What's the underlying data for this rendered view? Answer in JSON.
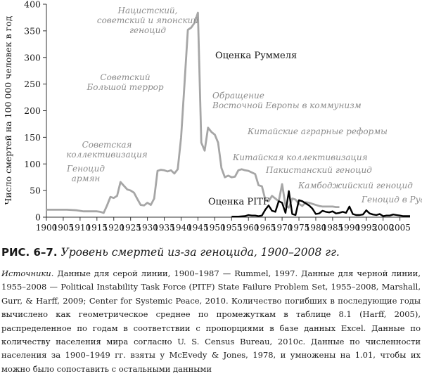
{
  "chart_data": {
    "type": "line",
    "ylabel": "Число смертей на 100 000 человек в год",
    "ylim": [
      0,
      400
    ],
    "yticks": [
      0,
      50,
      100,
      150,
      200,
      250,
      300,
      350,
      400
    ],
    "xlim": [
      1900,
      2008
    ],
    "xticks": [
      1900,
      1905,
      1910,
      1915,
      1920,
      1925,
      1930,
      1935,
      1940,
      1945,
      1950,
      1955,
      1960,
      1965,
      1970,
      1975,
      1980,
      1985,
      1990,
      1995,
      2000,
      2005
    ],
    "series": [
      {
        "name": "Оценка Руммеля",
        "color": "#a6a6a6",
        "x": [
          1900,
          1903,
          1906,
          1909,
          1911,
          1913,
          1915,
          1916,
          1917,
          1918,
          1919,
          1920,
          1921,
          1922,
          1924,
          1925,
          1926,
          1927,
          1928,
          1929,
          1930,
          1931,
          1932,
          1933,
          1934,
          1935,
          1936,
          1937,
          1938,
          1939,
          1940,
          1941,
          1942,
          1943,
          1944,
          1945,
          1946,
          1947,
          1948,
          1949,
          1950,
          1951,
          1952,
          1953,
          1954,
          1955,
          1956,
          1957,
          1958,
          1959,
          1960,
          1961,
          1962,
          1963,
          1964,
          1965,
          1966,
          1967,
          1968,
          1969,
          1970,
          1971,
          1972,
          1973,
          1974,
          1975,
          1976,
          1977,
          1978,
          1979,
          1980,
          1981,
          1982,
          1983,
          1984,
          1985,
          1986,
          1987
        ],
        "y": [
          14,
          14,
          14,
          13,
          11,
          11,
          11,
          10,
          8,
          22,
          38,
          36,
          40,
          66,
          52,
          50,
          46,
          34,
          23,
          22,
          27,
          23,
          35,
          87,
          89,
          88,
          86,
          88,
          82,
          90,
          150,
          250,
          352,
          356,
          365,
          384,
          140,
          125,
          168,
          160,
          155,
          140,
          92,
          75,
          78,
          75,
          76,
          88,
          90,
          88,
          87,
          84,
          81,
          60,
          58,
          33,
          30,
          40,
          35,
          30,
          62,
          22,
          18,
          35,
          33,
          25,
          21,
          28,
          27,
          25,
          23,
          21,
          20,
          20,
          20,
          20,
          19,
          19
        ]
      },
      {
        "name": "Оценка PITF",
        "color": "#000000",
        "x": [
          1955,
          1957,
          1959,
          1960,
          1961,
          1962,
          1963,
          1964,
          1965,
          1966,
          1967,
          1968,
          1969,
          1970,
          1971,
          1972,
          1973,
          1974,
          1975,
          1976,
          1977,
          1978,
          1979,
          1980,
          1981,
          1982,
          1983,
          1984,
          1985,
          1986,
          1987,
          1988,
          1989,
          1990,
          1991,
          1992,
          1993,
          1994,
          1995,
          1996,
          1997,
          1998,
          1999,
          2000,
          2001,
          2002,
          2003,
          2004,
          2005,
          2006,
          2007,
          2008
        ],
        "y": [
          1,
          1,
          2,
          4,
          3,
          3,
          2,
          3,
          14,
          22,
          12,
          10,
          30,
          27,
          8,
          49,
          6,
          4,
          32,
          30,
          26,
          22,
          16,
          6,
          7,
          12,
          10,
          9,
          11,
          7,
          8,
          10,
          8,
          20,
          6,
          4,
          4,
          5,
          13,
          7,
          5,
          4,
          6,
          2,
          3,
          3,
          5,
          4,
          3,
          2,
          2,
          2
        ]
      }
    ],
    "annotations": [
      "Нацистский,",
      "советский и японский",
      "геноцид",
      "Оценка Руммеля",
      "Советский",
      "Большой террор",
      "Обращение",
      "Восточной Европы в коммунизм",
      "Китайские аграрные реформы",
      "Советская",
      "коллективизация",
      "Китайская коллективизация",
      "Геноцид",
      "армян",
      "Пакистанский геноцид",
      "Камбоджийский геноцид",
      "Геноцид в Руанде",
      "Оценка PITF"
    ]
  },
  "figure": {
    "label": "РИС. 6–7.",
    "caption": "Уровень смертей из-за геноцида, 1900–2008 гг.",
    "sources_label": "Источники.",
    "sources_text": "Данные для серой линии, 1900–1987 — Rummel, 1997. Данные для черной линии, 1955–2008 — Political Instability Task Force (PITF) State Failure Problem Set, 1955–2008, Marshall, Gurr, & Harff, 2009; Center for Systemic Peace, 2010. Количество погибших в последующие годы вычислено как геометрическое среднее по промежуткам в таблице 8.1 (Harff, 2005), распределенное по годам в соответствии с пропорциями в базе данных Excel. Данные по количеству населения мира согласно U. S. Census Bureau, 2010c. Данные по численности населения за 1900–1949 гг. взяты у McEvedy & Jones, 1978, и умножены на 1.01, чтобы их можно было сопоставить с остальными данными"
  }
}
